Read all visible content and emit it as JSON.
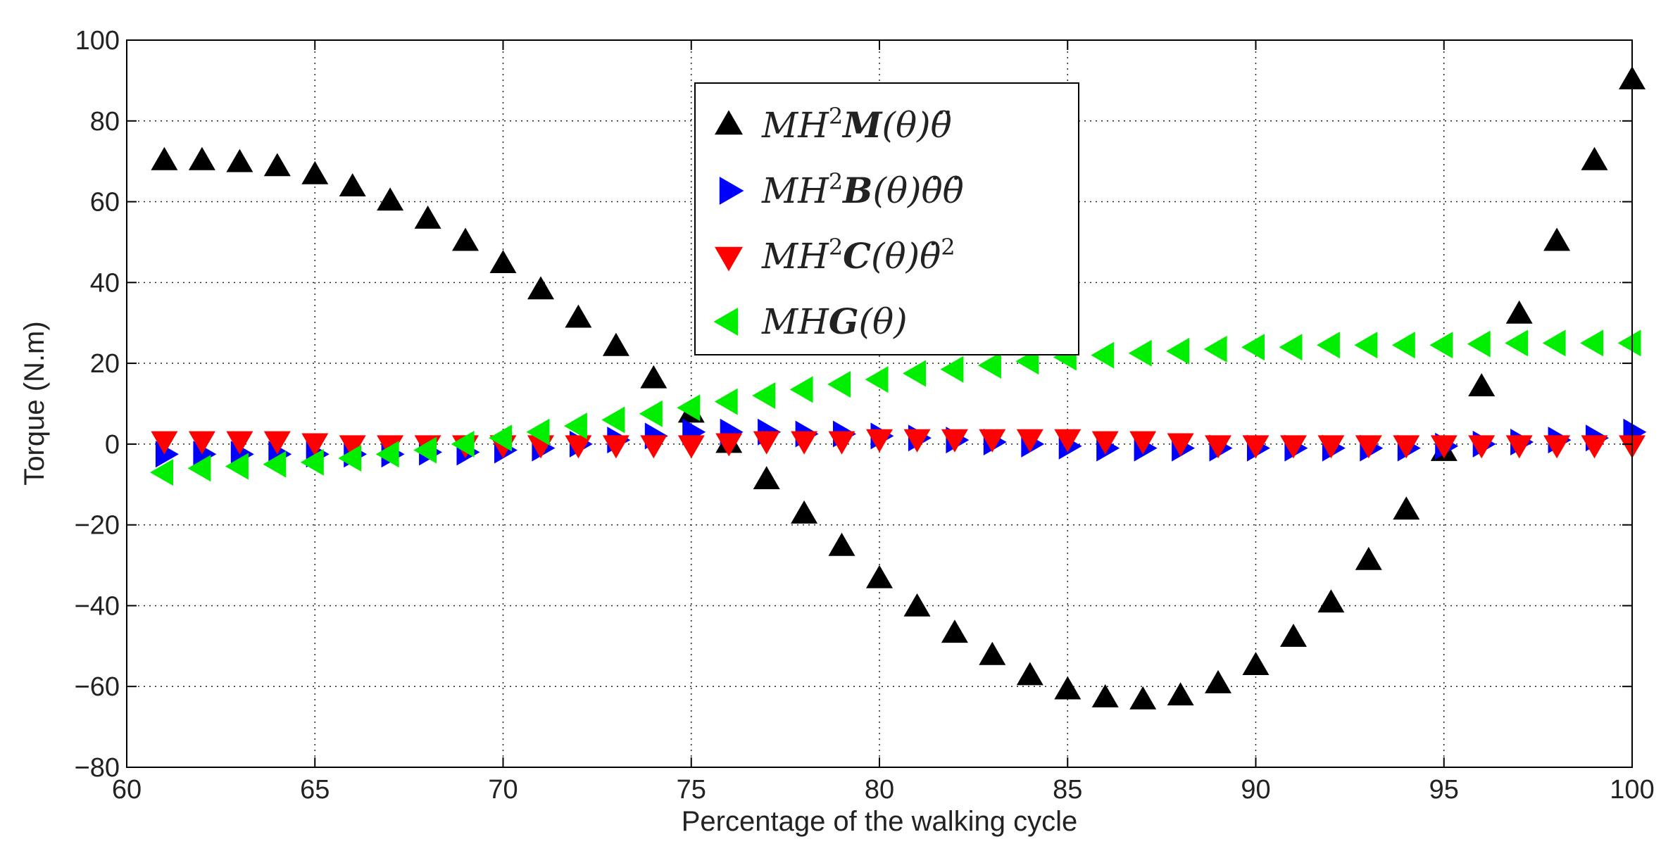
{
  "chart_data": {
    "type": "scatter",
    "title": "",
    "xlabel": "Percentage of the walking cycle",
    "ylabel": "Torque (N.m)",
    "xlim": [
      60,
      100
    ],
    "ylim": [
      -80,
      100
    ],
    "xticks": [
      "60",
      "65",
      "70",
      "75",
      "80",
      "85",
      "90",
      "95",
      "100"
    ],
    "yticks": [
      "100",
      "80",
      "60",
      "40",
      "20",
      "0",
      "−20",
      "−40",
      "−60",
      "−80"
    ],
    "grid": true,
    "legend_position": "top-center",
    "x": [
      61,
      62,
      63,
      64,
      65,
      66,
      67,
      68,
      69,
      70,
      71,
      72,
      73,
      74,
      75,
      76,
      77,
      78,
      79,
      80,
      81,
      82,
      83,
      84,
      85,
      86,
      87,
      88,
      89,
      90,
      91,
      92,
      93,
      94,
      95,
      96,
      97,
      98,
      99,
      100
    ],
    "series": [
      {
        "name": "MH²M(θ)θ̈",
        "legend_parts": [
          "MH",
          "2",
          "M",
          "(θ)θ̈"
        ],
        "marker": "triangle-up",
        "color": "#000000",
        "values": [
          70,
          70,
          69.5,
          68.5,
          66.5,
          63.5,
          60,
          55.5,
          50,
          44.5,
          38,
          31,
          24,
          16,
          7.5,
          0,
          -9,
          -17.5,
          -25.5,
          -33.5,
          -40.5,
          -47,
          -52.5,
          -57.5,
          -61,
          -63,
          -63.5,
          -62.5,
          -59.5,
          -55,
          -48,
          -39.5,
          -29,
          -16.5,
          -2,
          14,
          32,
          50,
          70,
          90
        ]
      },
      {
        "name": "MH²B(θ)θ̇θ̇",
        "legend_parts": [
          "MH",
          "2",
          "B",
          "(θ)θ̇θ̇"
        ],
        "marker": "triangle-right",
        "color": "#0000ff",
        "values": [
          -2.5,
          -2.5,
          -2.5,
          -2.5,
          -2.5,
          -2.5,
          -2.5,
          -2,
          -2,
          -1.5,
          -1,
          0,
          1,
          2,
          3,
          3,
          3,
          2.5,
          2.5,
          2,
          1.5,
          1,
          0.5,
          0,
          -0.5,
          -1,
          -1,
          -1,
          -1,
          -1,
          -1,
          -1,
          -1,
          -1,
          -0.5,
          0,
          0.5,
          1,
          1.5,
          3
        ]
      },
      {
        "name": "MH²C(θ)θ̇²",
        "legend_parts": [
          "MH",
          "2",
          "C",
          "(θ)θ̇",
          "2"
        ],
        "marker": "triangle-down",
        "color": "#ff0000",
        "values": [
          1,
          1,
          1,
          1,
          0.5,
          0,
          0,
          0,
          0,
          0,
          0,
          0,
          0,
          0,
          0,
          0.5,
          1,
          1,
          1,
          1.5,
          1.5,
          1.5,
          1.5,
          1.5,
          1.5,
          1,
          1,
          0.5,
          0,
          0,
          0,
          0,
          0,
          0,
          0,
          0,
          0,
          0,
          0,
          0
        ]
      },
      {
        "name": "MHG(θ)",
        "legend_parts": [
          "MH",
          "",
          "G",
          "(θ)"
        ],
        "marker": "triangle-left",
        "color": "#00ee00",
        "values": [
          -7,
          -6,
          -5.5,
          -5,
          -4.5,
          -3.5,
          -2.5,
          -1.5,
          0,
          1.5,
          3,
          4.5,
          6,
          7.5,
          9,
          10.5,
          12,
          13.5,
          14.8,
          16,
          17.5,
          18.5,
          19.5,
          20.5,
          21.5,
          22,
          22.5,
          23,
          23.5,
          24,
          24,
          24.5,
          24.5,
          24.5,
          24.5,
          24.8,
          25,
          25,
          25,
          25
        ]
      }
    ]
  }
}
